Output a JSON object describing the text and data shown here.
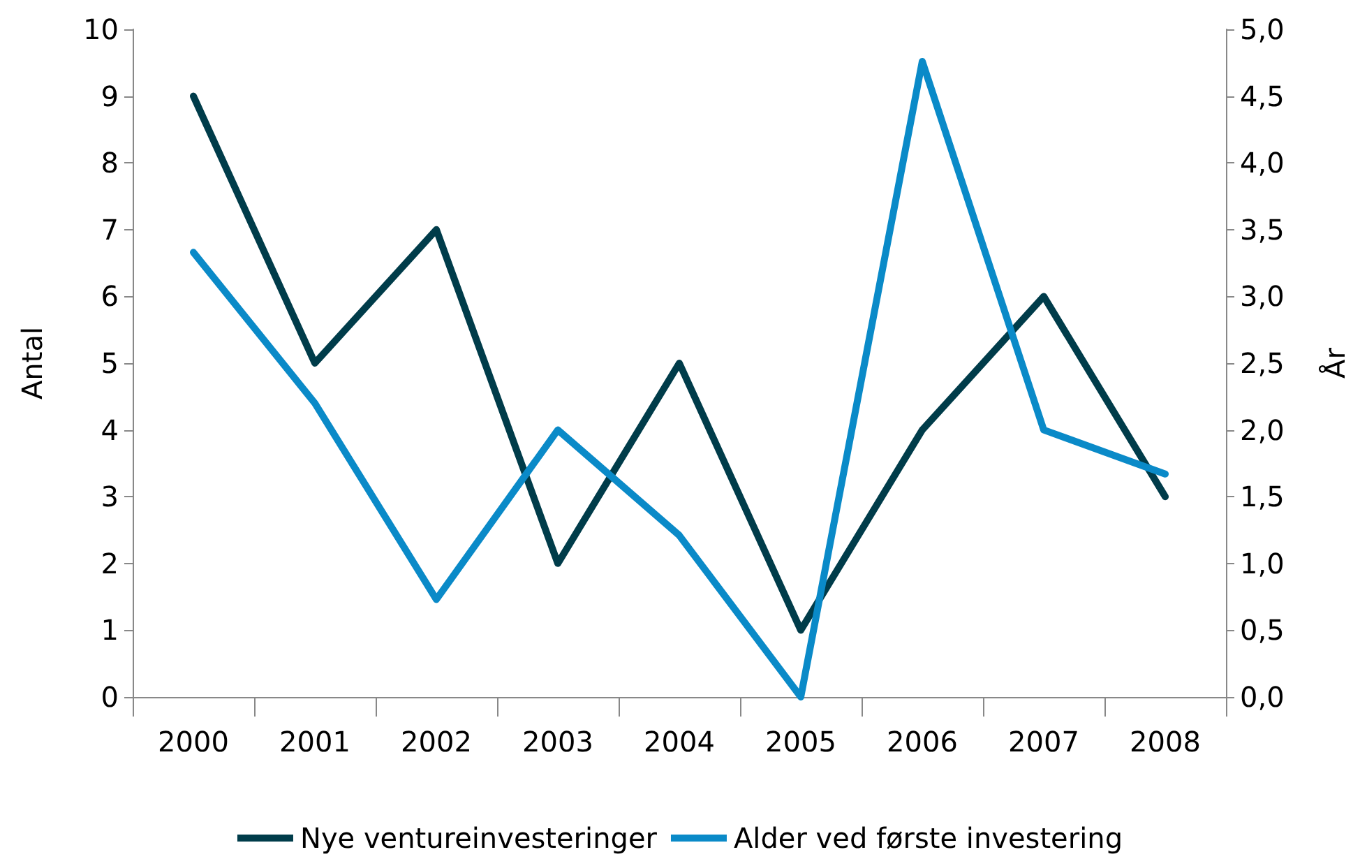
{
  "chart_data": {
    "type": "line",
    "ylabel": "Antal",
    "y2label": "År",
    "categories": [
      "2000",
      "2001",
      "2002",
      "2003",
      "2004",
      "2005",
      "2006",
      "2007",
      "2008"
    ],
    "series": [
      {
        "name": "Nye ventureinvesteringer",
        "color": "#003c4a",
        "values": [
          9,
          5,
          7,
          2,
          5,
          1,
          4,
          6,
          3
        ]
      },
      {
        "name": "Alder ved første investering",
        "color": "#0a8ac8",
        "axis": "y2",
        "values": [
          3.33,
          2.2,
          0.73,
          2.0,
          1.21,
          0.0,
          4.76,
          2.0,
          1.67
        ]
      }
    ],
    "ylim": [
      0,
      10
    ],
    "yticks": [
      0,
      1,
      2,
      3,
      4,
      5,
      6,
      7,
      8,
      9,
      10
    ],
    "y2lim": [
      0,
      5
    ],
    "y2ticks": [
      {
        "value": 0,
        "label": "0,0"
      },
      {
        "value": 0.5,
        "label": "0,5"
      },
      {
        "value": 1,
        "label": "1,0"
      },
      {
        "value": 1.5,
        "label": "1,5"
      },
      {
        "value": 2,
        "label": "2,0"
      },
      {
        "value": 2.5,
        "label": "2,5"
      },
      {
        "value": 3,
        "label": "3,0"
      },
      {
        "value": 3.5,
        "label": "3,5"
      },
      {
        "value": 4,
        "label": "4,0"
      },
      {
        "value": 4.5,
        "label": "4,5"
      },
      {
        "value": 5,
        "label": "5,0"
      }
    ],
    "grid": false,
    "legend": "bottom",
    "marker": "none",
    "line_style": "solid"
  }
}
